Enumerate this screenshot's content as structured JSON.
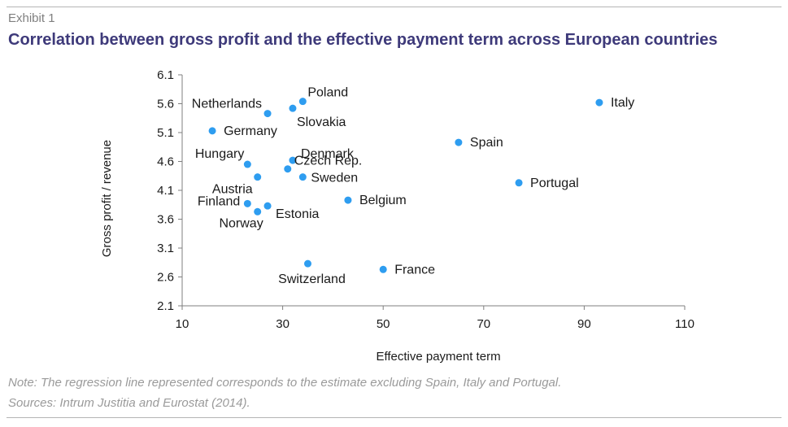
{
  "header": {
    "exhibit": "Exhibit 1",
    "title": "Correlation between gross profit and the effective payment term across European countries"
  },
  "footer": {
    "note": "Note: The regression line represented corresponds to the estimate excluding Spain, Italy and Portugal.",
    "sources": "Sources: Intrum Justitia and Eurostat (2014)."
  },
  "colors": {
    "point": "#2e9df0",
    "axis": "#7f7f7f",
    "text": "#1a1a1a",
    "title": "#3e3a7a"
  },
  "chart_data": {
    "type": "scatter",
    "title": "",
    "xlabel": "Effective payment term",
    "ylabel": "Gross profit / revenue",
    "xlim": [
      10,
      110
    ],
    "ylim": [
      2.1,
      6.1
    ],
    "xticks": [
      "10",
      "30",
      "50",
      "70",
      "90",
      "110"
    ],
    "yticks": [
      "2.1",
      "2.6",
      "3.1",
      "3.6",
      "4.1",
      "4.6",
      "5.1",
      "5.6",
      "6.1"
    ],
    "grid": false,
    "points": [
      {
        "label": "Poland",
        "x": 34,
        "y": 5.64
      },
      {
        "label": "Netherlands",
        "x": 27,
        "y": 5.43
      },
      {
        "label": "Slovakia",
        "x": 32,
        "y": 5.52
      },
      {
        "label": "Italy",
        "x": 93,
        "y": 5.62
      },
      {
        "label": "Germany",
        "x": 16,
        "y": 5.13
      },
      {
        "label": "Spain",
        "x": 65,
        "y": 4.93
      },
      {
        "label": "Denmark",
        "x": 32,
        "y": 4.62
      },
      {
        "label": "Hungary",
        "x": 23,
        "y": 4.55
      },
      {
        "label": "Czech Rep.",
        "x": 31,
        "y": 4.47
      },
      {
        "label": "Austria",
        "x": 25,
        "y": 4.33
      },
      {
        "label": "Sweden",
        "x": 34,
        "y": 4.33
      },
      {
        "label": "Portugal",
        "x": 77,
        "y": 4.23
      },
      {
        "label": "Belgium",
        "x": 43,
        "y": 3.93
      },
      {
        "label": "Finland",
        "x": 23,
        "y": 3.87
      },
      {
        "label": "Estonia",
        "x": 27,
        "y": 3.83
      },
      {
        "label": "Norway",
        "x": 25,
        "y": 3.73
      },
      {
        "label": "Switzerland",
        "x": 35,
        "y": 2.83
      },
      {
        "label": "France",
        "x": 50,
        "y": 2.73
      }
    ]
  }
}
